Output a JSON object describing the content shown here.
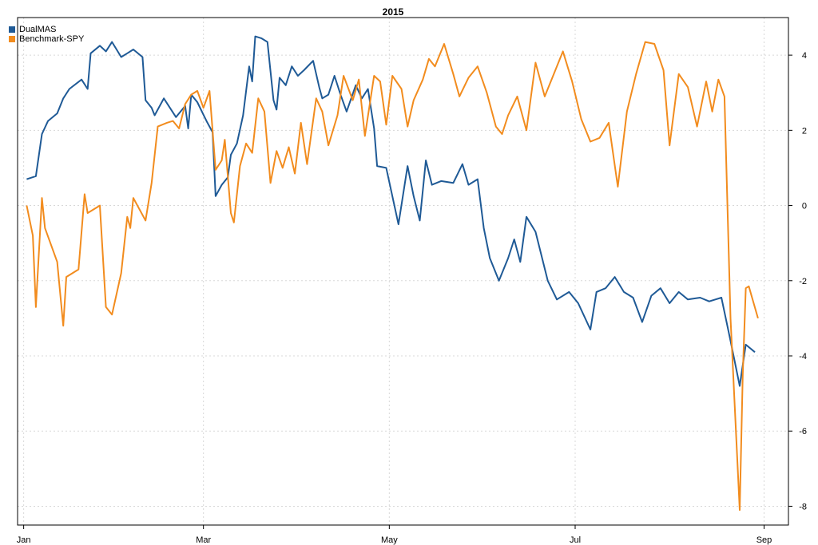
{
  "chart_data": {
    "type": "line",
    "title": "2015",
    "xlabel": "",
    "ylabel": "",
    "x_ticks": [
      {
        "date": "2015-01-01",
        "label": "Jan"
      },
      {
        "date": "2015-03-01",
        "label": "Mar"
      },
      {
        "date": "2015-05-01",
        "label": "May"
      },
      {
        "date": "2015-07-01",
        "label": "Jul"
      },
      {
        "date": "2015-09-01",
        "label": "Sep"
      }
    ],
    "xlim": [
      "2014-12-30",
      "2015-09-09"
    ],
    "y_ticks": [
      4,
      2,
      0,
      -2,
      -4,
      -6,
      -8
    ],
    "ylim": [
      -8.5,
      5.0
    ],
    "y_axis_side": "right",
    "grid": true,
    "legend_position": "top-left",
    "colors": {
      "DualMAS": "#1f5a96",
      "Benchmark-SPY": "#f28c1e",
      "grid": "#d8d8d8"
    },
    "series": [
      {
        "name": "DualMAS",
        "points": [
          [
            "2015-01-02",
            0.7
          ],
          [
            "2015-01-05",
            0.78
          ],
          [
            "2015-01-07",
            1.9
          ],
          [
            "2015-01-09",
            2.25
          ],
          [
            "2015-01-12",
            2.45
          ],
          [
            "2015-01-14",
            2.85
          ],
          [
            "2015-01-16",
            3.1
          ],
          [
            "2015-01-20",
            3.35
          ],
          [
            "2015-01-22",
            3.1
          ],
          [
            "2015-01-23",
            4.05
          ],
          [
            "2015-01-26",
            4.25
          ],
          [
            "2015-01-28",
            4.1
          ],
          [
            "2015-01-30",
            4.35
          ],
          [
            "2015-02-02",
            3.95
          ],
          [
            "2015-02-04",
            4.05
          ],
          [
            "2015-02-06",
            4.15
          ],
          [
            "2015-02-09",
            3.95
          ],
          [
            "2015-02-10",
            2.8
          ],
          [
            "2015-02-12",
            2.6
          ],
          [
            "2015-02-13",
            2.4
          ],
          [
            "2015-02-16",
            2.85
          ],
          [
            "2015-02-18",
            2.6
          ],
          [
            "2015-02-20",
            2.35
          ],
          [
            "2015-02-23",
            2.65
          ],
          [
            "2015-02-24",
            2.05
          ],
          [
            "2015-02-25",
            2.95
          ],
          [
            "2015-02-27",
            2.75
          ],
          [
            "2015-03-02",
            2.25
          ],
          [
            "2015-03-04",
            1.95
          ],
          [
            "2015-03-05",
            0.25
          ],
          [
            "2015-03-07",
            0.55
          ],
          [
            "2015-03-09",
            0.75
          ],
          [
            "2015-03-10",
            1.35
          ],
          [
            "2015-03-12",
            1.65
          ],
          [
            "2015-03-14",
            2.4
          ],
          [
            "2015-03-16",
            3.7
          ],
          [
            "2015-03-17",
            3.3
          ],
          [
            "2015-03-18",
            4.5
          ],
          [
            "2015-03-20",
            4.45
          ],
          [
            "2015-03-22",
            4.35
          ],
          [
            "2015-03-24",
            2.8
          ],
          [
            "2015-03-25",
            2.55
          ],
          [
            "2015-03-26",
            3.4
          ],
          [
            "2015-03-28",
            3.2
          ],
          [
            "2015-03-30",
            3.7
          ],
          [
            "2015-04-01",
            3.45
          ],
          [
            "2015-04-03",
            3.6
          ],
          [
            "2015-04-06",
            3.85
          ],
          [
            "2015-04-08",
            3.15
          ],
          [
            "2015-04-09",
            2.85
          ],
          [
            "2015-04-11",
            2.95
          ],
          [
            "2015-04-13",
            3.45
          ],
          [
            "2015-04-15",
            2.95
          ],
          [
            "2015-04-17",
            2.5
          ],
          [
            "2015-04-20",
            3.2
          ],
          [
            "2015-04-22",
            2.85
          ],
          [
            "2015-04-24",
            3.1
          ],
          [
            "2015-04-26",
            2.05
          ],
          [
            "2015-04-27",
            1.05
          ],
          [
            "2015-04-30",
            1.0
          ],
          [
            "2015-05-04",
            -0.5
          ],
          [
            "2015-05-07",
            1.05
          ],
          [
            "2015-05-09",
            0.25
          ],
          [
            "2015-05-11",
            -0.4
          ],
          [
            "2015-05-13",
            1.2
          ],
          [
            "2015-05-15",
            0.55
          ],
          [
            "2015-05-18",
            0.65
          ],
          [
            "2015-05-22",
            0.6
          ],
          [
            "2015-05-25",
            1.1
          ],
          [
            "2015-05-27",
            0.55
          ],
          [
            "2015-05-30",
            0.7
          ],
          [
            "2015-06-01",
            -0.6
          ],
          [
            "2015-06-03",
            -1.4
          ],
          [
            "2015-06-06",
            -2.0
          ],
          [
            "2015-06-09",
            -1.4
          ],
          [
            "2015-06-11",
            -0.9
          ],
          [
            "2015-06-13",
            -1.5
          ],
          [
            "2015-06-15",
            -0.3
          ],
          [
            "2015-06-18",
            -0.7
          ],
          [
            "2015-06-22",
            -2.0
          ],
          [
            "2015-06-25",
            -2.5
          ],
          [
            "2015-06-29",
            -2.3
          ],
          [
            "2015-07-02",
            -2.6
          ],
          [
            "2015-07-06",
            -3.3
          ],
          [
            "2015-07-08",
            -2.3
          ],
          [
            "2015-07-11",
            -2.2
          ],
          [
            "2015-07-14",
            -1.9
          ],
          [
            "2015-07-17",
            -2.3
          ],
          [
            "2015-07-20",
            -2.45
          ],
          [
            "2015-07-23",
            -3.1
          ],
          [
            "2015-07-26",
            -2.4
          ],
          [
            "2015-07-29",
            -2.2
          ],
          [
            "2015-08-01",
            -2.6
          ],
          [
            "2015-08-04",
            -2.3
          ],
          [
            "2015-08-07",
            -2.5
          ],
          [
            "2015-08-11",
            -2.45
          ],
          [
            "2015-08-14",
            -2.55
          ],
          [
            "2015-08-16",
            -2.5
          ],
          [
            "2015-08-18",
            -2.45
          ],
          [
            "2015-08-21",
            -3.6
          ],
          [
            "2015-08-24",
            -4.8
          ],
          [
            "2015-08-26",
            -3.7
          ],
          [
            "2015-08-29",
            -3.9
          ]
        ]
      },
      {
        "name": "Benchmark-SPY",
        "points": [
          [
            "2015-01-02",
            0.0
          ],
          [
            "2015-01-04",
            -0.8
          ],
          [
            "2015-01-05",
            -2.7
          ],
          [
            "2015-01-07",
            0.2
          ],
          [
            "2015-01-08",
            -0.6
          ],
          [
            "2015-01-12",
            -1.5
          ],
          [
            "2015-01-14",
            -3.2
          ],
          [
            "2015-01-15",
            -1.9
          ],
          [
            "2015-01-19",
            -1.7
          ],
          [
            "2015-01-21",
            0.3
          ],
          [
            "2015-01-22",
            -0.2
          ],
          [
            "2015-01-26",
            0.0
          ],
          [
            "2015-01-28",
            -2.7
          ],
          [
            "2015-01-30",
            -2.9
          ],
          [
            "2015-02-02",
            -1.8
          ],
          [
            "2015-02-04",
            -0.3
          ],
          [
            "2015-02-05",
            -0.6
          ],
          [
            "2015-02-06",
            0.2
          ],
          [
            "2015-02-10",
            -0.4
          ],
          [
            "2015-02-12",
            0.6
          ],
          [
            "2015-02-14",
            2.1
          ],
          [
            "2015-02-17",
            2.2
          ],
          [
            "2015-02-19",
            2.25
          ],
          [
            "2015-02-21",
            2.05
          ],
          [
            "2015-02-23",
            2.7
          ],
          [
            "2015-02-25",
            2.95
          ],
          [
            "2015-02-27",
            3.05
          ],
          [
            "2015-03-01",
            2.6
          ],
          [
            "2015-03-03",
            3.05
          ],
          [
            "2015-03-05",
            0.95
          ],
          [
            "2015-03-07",
            1.2
          ],
          [
            "2015-03-08",
            1.75
          ],
          [
            "2015-03-10",
            -0.2
          ],
          [
            "2015-03-11",
            -0.45
          ],
          [
            "2015-03-13",
            1.05
          ],
          [
            "2015-03-15",
            1.65
          ],
          [
            "2015-03-17",
            1.4
          ],
          [
            "2015-03-19",
            2.85
          ],
          [
            "2015-03-21",
            2.5
          ],
          [
            "2015-03-23",
            0.6
          ],
          [
            "2015-03-25",
            1.45
          ],
          [
            "2015-03-27",
            1.0
          ],
          [
            "2015-03-29",
            1.55
          ],
          [
            "2015-03-31",
            0.85
          ],
          [
            "2015-04-02",
            2.2
          ],
          [
            "2015-04-04",
            1.1
          ],
          [
            "2015-04-07",
            2.85
          ],
          [
            "2015-04-09",
            2.5
          ],
          [
            "2015-04-11",
            1.6
          ],
          [
            "2015-04-14",
            2.4
          ],
          [
            "2015-04-16",
            3.45
          ],
          [
            "2015-04-19",
            2.8
          ],
          [
            "2015-04-21",
            3.35
          ],
          [
            "2015-04-23",
            1.85
          ],
          [
            "2015-04-26",
            3.45
          ],
          [
            "2015-04-28",
            3.3
          ],
          [
            "2015-04-30",
            2.15
          ],
          [
            "2015-05-02",
            3.45
          ],
          [
            "2015-05-05",
            3.1
          ],
          [
            "2015-05-07",
            2.1
          ],
          [
            "2015-05-09",
            2.8
          ],
          [
            "2015-05-12",
            3.35
          ],
          [
            "2015-05-14",
            3.9
          ],
          [
            "2015-05-16",
            3.7
          ],
          [
            "2015-05-19",
            4.3
          ],
          [
            "2015-05-22",
            3.5
          ],
          [
            "2015-05-24",
            2.9
          ],
          [
            "2015-05-27",
            3.4
          ],
          [
            "2015-05-30",
            3.7
          ],
          [
            "2015-06-02",
            3.0
          ],
          [
            "2015-06-05",
            2.1
          ],
          [
            "2015-06-07",
            1.9
          ],
          [
            "2015-06-09",
            2.4
          ],
          [
            "2015-06-12",
            2.9
          ],
          [
            "2015-06-15",
            2.0
          ],
          [
            "2015-06-18",
            3.8
          ],
          [
            "2015-06-21",
            2.9
          ],
          [
            "2015-06-24",
            3.5
          ],
          [
            "2015-06-27",
            4.1
          ],
          [
            "2015-06-30",
            3.3
          ],
          [
            "2015-07-03",
            2.3
          ],
          [
            "2015-07-06",
            1.7
          ],
          [
            "2015-07-09",
            1.8
          ],
          [
            "2015-07-12",
            2.2
          ],
          [
            "2015-07-15",
            0.5
          ],
          [
            "2015-07-18",
            2.5
          ],
          [
            "2015-07-21",
            3.5
          ],
          [
            "2015-07-24",
            4.35
          ],
          [
            "2015-07-27",
            4.3
          ],
          [
            "2015-07-30",
            3.6
          ],
          [
            "2015-08-01",
            1.6
          ],
          [
            "2015-08-04",
            3.5
          ],
          [
            "2015-08-07",
            3.15
          ],
          [
            "2015-08-10",
            2.1
          ],
          [
            "2015-08-13",
            3.3
          ],
          [
            "2015-08-15",
            2.5
          ],
          [
            "2015-08-17",
            3.35
          ],
          [
            "2015-08-19",
            2.9
          ],
          [
            "2015-08-21",
            -3.0
          ],
          [
            "2015-08-24",
            -8.1
          ],
          [
            "2015-08-25",
            -4.5
          ],
          [
            "2015-08-26",
            -2.2
          ],
          [
            "2015-08-27",
            -2.15
          ],
          [
            "2015-08-30",
            -3.0
          ]
        ]
      }
    ]
  }
}
